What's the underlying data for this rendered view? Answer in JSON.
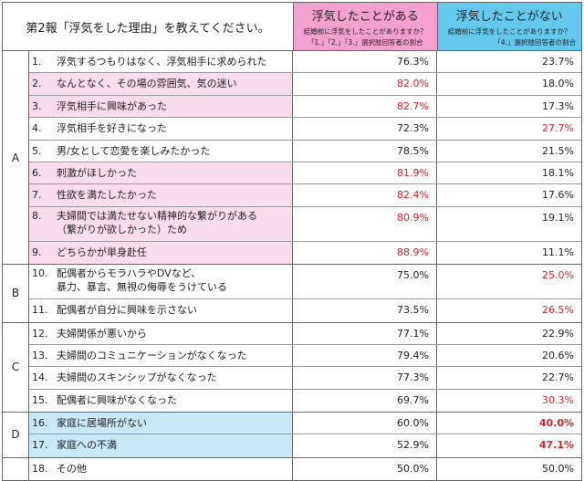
{
  "header": {
    "title": "第2報「浮気をした理由」を教えてください。",
    "col1": {
      "title": "浮気したことがある",
      "sub1": "結婚前に浮気をしたことがありますか？",
      "sub2": "「1.」「2.」「3.」選択肢回答者の割合"
    },
    "col2": {
      "title": "浮気したことがない",
      "sub1": "結婚前に浮気をしたことがありますか？",
      "sub2": "「4.」選択肢回答者の割合"
    }
  },
  "colors": {
    "pink_header": "#f4a1cf",
    "blue_header": "#64c9ec",
    "pink_row": "#fbdcee",
    "blue_row": "#c8e9f7",
    "red_value": "#d9232b"
  },
  "groups": [
    {
      "label": "A",
      "rows": [
        {
          "num": "1.",
          "text": "浮気するつもりはなく、浮気相手に求められた",
          "yes": "76.3%",
          "no": "23.7%",
          "hl": "",
          "yes_red": false,
          "no_red": false
        },
        {
          "num": "2.",
          "text": "なんとなく、その場の雰囲気、気の迷い",
          "yes": "82.0%",
          "no": "18.0%",
          "hl": "pink",
          "yes_red": true,
          "no_red": false
        },
        {
          "num": "3.",
          "text": "浮気相手に興味があった",
          "yes": "82.7%",
          "no": "17.3%",
          "hl": "pink",
          "yes_red": true,
          "no_red": false
        },
        {
          "num": "4.",
          "text": "浮気相手を好きになった",
          "yes": "72.3%",
          "no": "27.7%",
          "hl": "",
          "yes_red": false,
          "no_red": true
        },
        {
          "num": "5.",
          "text": "男/女として恋愛を楽しみたかった",
          "yes": "78.5%",
          "no": "21.5%",
          "hl": "",
          "yes_red": false,
          "no_red": false
        },
        {
          "num": "6.",
          "text": "刺激がほしかった",
          "yes": "81.9%",
          "no": "18.1%",
          "hl": "pink",
          "yes_red": true,
          "no_red": false
        },
        {
          "num": "7.",
          "text": "性欲を満たしたかった",
          "yes": "82.4%",
          "no": "17.6%",
          "hl": "pink",
          "yes_red": true,
          "no_red": false
        },
        {
          "num": "8.",
          "text": "夫婦間では満たせない精神的な繋がりがある\n（繋がりが欲しかった）ため",
          "yes": "80.9%",
          "no": "19.1%",
          "hl": "pink",
          "yes_red": true,
          "no_red": false
        },
        {
          "num": "9.",
          "text": "どちらかが単身赴任",
          "yes": "88.9%",
          "no": "11.1%",
          "hl": "pink",
          "yes_red": true,
          "no_red": false
        }
      ]
    },
    {
      "label": "B",
      "rows": [
        {
          "num": "10.",
          "text": "配偶者からモラハラやDVなど、\n暴力、暴言、無視の侮辱をうけている",
          "yes": "75.0%",
          "no": "25.0%",
          "hl": "",
          "yes_red": false,
          "no_red": true
        },
        {
          "num": "11.",
          "text": "配偶者が自分に興味を示さない",
          "yes": "73.5%",
          "no": "26.5%",
          "hl": "",
          "yes_red": false,
          "no_red": true
        }
      ]
    },
    {
      "label": "C",
      "rows": [
        {
          "num": "12.",
          "text": "夫婦関係が悪いから",
          "yes": "77.1%",
          "no": "22.9%",
          "hl": "",
          "yes_red": false,
          "no_red": false
        },
        {
          "num": "13.",
          "text": "夫婦間のコミュニケーションがなくなった",
          "yes": "79.4%",
          "no": "20.6%",
          "hl": "",
          "yes_red": false,
          "no_red": false
        },
        {
          "num": "14.",
          "text": "夫婦間のスキンシップがなくなった",
          "yes": "77.3%",
          "no": "22.7%",
          "hl": "",
          "yes_red": false,
          "no_red": false
        },
        {
          "num": "15.",
          "text": "配偶者に興味がなくなった",
          "yes": "69.7%",
          "no": "30.3%",
          "hl": "",
          "yes_red": false,
          "no_red": true
        }
      ]
    },
    {
      "label": "D",
      "rows": [
        {
          "num": "16.",
          "text": "家庭に居場所がない",
          "yes": "60.0%",
          "no": "40.0%",
          "hl": "blue",
          "yes_red": false,
          "no_red": true,
          "no_bold": true
        },
        {
          "num": "17.",
          "text": "家庭への不満",
          "yes": "52.9%",
          "no": "47.1%",
          "hl": "blue",
          "yes_red": false,
          "no_red": true,
          "no_bold": true
        }
      ]
    },
    {
      "label": "",
      "rows": [
        {
          "num": "18.",
          "text": "その他",
          "yes": "50.0%",
          "no": "50.0%",
          "hl": "",
          "yes_red": false,
          "no_red": false
        }
      ]
    }
  ]
}
